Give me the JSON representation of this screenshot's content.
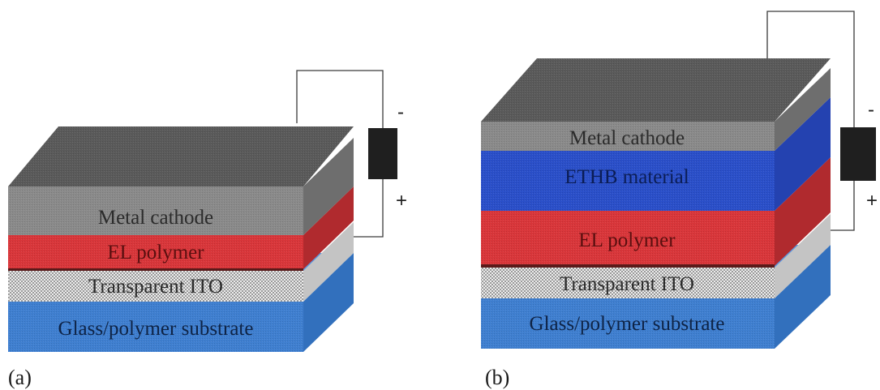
{
  "panels": [
    {
      "id": "a",
      "label": "(a)",
      "layers": [
        {
          "name": "Metal cathode",
          "color": "#8a8a8a",
          "top_color": "#5a5a5a",
          "side_color": "#6e6e6e",
          "text_color": "#2b2b2b"
        },
        {
          "name": "EL polymer",
          "color": "#d9363a",
          "top_color": "#e2454a",
          "side_color": "#b02a2e",
          "text_color": "#5a0f0f"
        },
        {
          "name": "Transparent ITO",
          "color": "#d8d8d8",
          "top_color": "#e6e6e6",
          "side_color": "#c4c4c4",
          "text_color": "#2b2b2b"
        },
        {
          "name": "Glass/polymer substrate",
          "color": "#3f7fd0",
          "top_color": "#5d97dd",
          "side_color": "#3270bd",
          "text_color": "#0e2345"
        }
      ],
      "battery": {
        "minus": "-",
        "plus": "+"
      }
    },
    {
      "id": "b",
      "label": "(b)",
      "layers": [
        {
          "name": "Metal cathode",
          "color": "#8a8a8a",
          "top_color": "#5a5a5a",
          "side_color": "#6e6e6e",
          "text_color": "#2b2b2b"
        },
        {
          "name": "ETHB material",
          "color": "#2a4fc9",
          "top_color": "#3a5fd6",
          "side_color": "#2442b0",
          "text_color": "#0b1d55"
        },
        {
          "name": "EL polymer",
          "color": "#d9363a",
          "top_color": "#e2454a",
          "side_color": "#b02a2e",
          "text_color": "#5a0f0f"
        },
        {
          "name": "Transparent ITO",
          "color": "#d8d8d8",
          "top_color": "#e6e6e6",
          "side_color": "#c4c4c4",
          "text_color": "#2b2b2b"
        },
        {
          "name": "Glass/polymer substrate",
          "color": "#3f7fd0",
          "top_color": "#5d97dd",
          "side_color": "#3270bd",
          "text_color": "#0e2345"
        }
      ],
      "battery": {
        "minus": "-",
        "plus": "+"
      }
    }
  ]
}
